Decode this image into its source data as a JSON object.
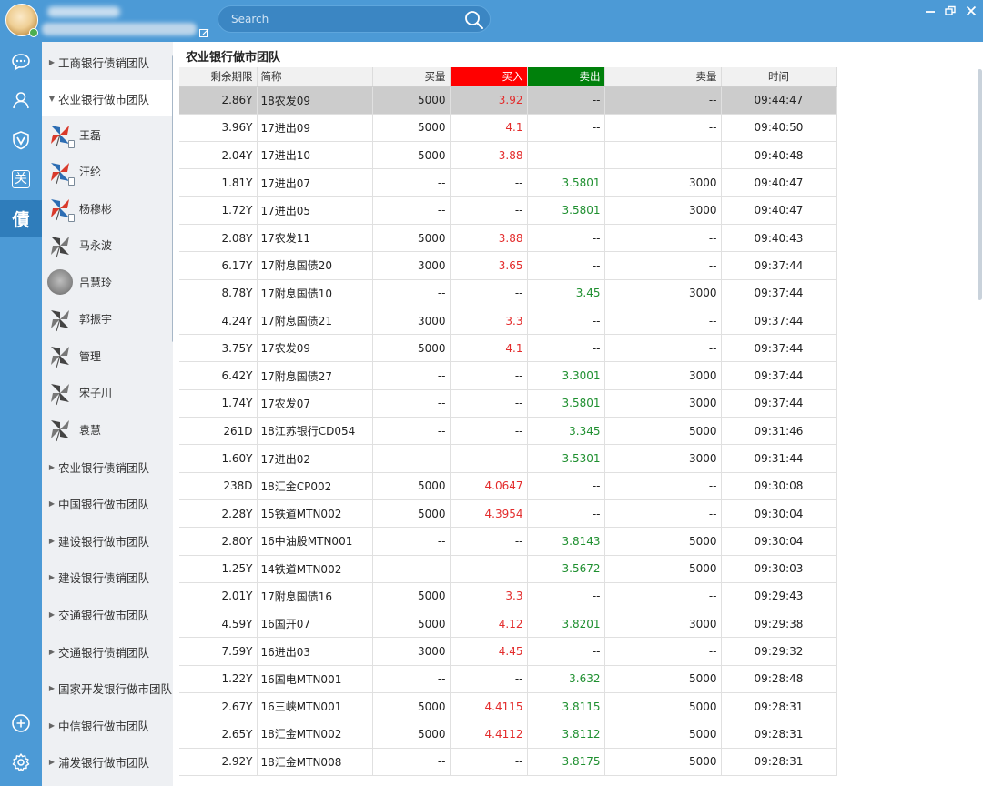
{
  "search": {
    "placeholder": "Search"
  },
  "colors": {
    "bar": "#4c9ad6",
    "buy_header": "#ff0000",
    "sell_header": "#00800b",
    "buy_text": "#e32b2b",
    "sell_text": "#1e8f2f"
  },
  "nav": [
    {
      "icon": "chat-icon"
    },
    {
      "icon": "contacts-icon"
    },
    {
      "icon": "shield-v-icon"
    },
    {
      "icon": "guan-icon",
      "glyph": "关"
    },
    {
      "icon": "zhai-icon",
      "glyph": "債",
      "active": true
    }
  ],
  "groups_top": [
    {
      "label": "工商银行债销团队",
      "expanded": false
    },
    {
      "label": "农业银行做市团队",
      "expanded": true
    }
  ],
  "members": [
    {
      "name": "王磊",
      "avatar": "pinwheel-color",
      "badge": true
    },
    {
      "name": "汪纶",
      "avatar": "pinwheel-color",
      "badge": true
    },
    {
      "name": "杨穆彬",
      "avatar": "pinwheel-color",
      "badge": true
    },
    {
      "name": "马永波",
      "avatar": "pinwheel-gray",
      "badge": false
    },
    {
      "name": "吕慧玲",
      "avatar": "photo",
      "badge": false
    },
    {
      "name": "郭振宇",
      "avatar": "pinwheel-gray",
      "badge": false
    },
    {
      "name": "管理",
      "avatar": "pinwheel-gray",
      "badge": false
    },
    {
      "name": "宋子川",
      "avatar": "pinwheel-gray",
      "badge": false
    },
    {
      "name": "袁慧",
      "avatar": "pinwheel-gray",
      "badge": false
    }
  ],
  "groups_bottom": [
    "农业银行债销团队",
    "中国银行做市团队",
    "建设银行做市团队",
    "建设银行债销团队",
    "交通银行做市团队",
    "交通银行债销团队",
    "国家开发银行做市团队",
    "中信银行做市团队",
    "浦发银行做市团队"
  ],
  "main": {
    "title": "农业银行做市团队",
    "columns": [
      "剩余期限",
      "简称",
      "买量",
      "买入",
      "卖出",
      "卖量",
      "时间"
    ],
    "rows": [
      [
        "2.86Y",
        "18农发09",
        "5000",
        "3.92",
        "--",
        "--",
        "09:44:47"
      ],
      [
        "3.96Y",
        "17进出09",
        "5000",
        "4.1",
        "--",
        "--",
        "09:40:50"
      ],
      [
        "2.04Y",
        "17进出10",
        "5000",
        "3.88",
        "--",
        "--",
        "09:40:48"
      ],
      [
        "1.81Y",
        "17进出07",
        "--",
        "--",
        "3.5801",
        "3000",
        "09:40:47"
      ],
      [
        "1.72Y",
        "17进出05",
        "--",
        "--",
        "3.5801",
        "3000",
        "09:40:47"
      ],
      [
        "2.08Y",
        "17农发11",
        "5000",
        "3.88",
        "--",
        "--",
        "09:40:43"
      ],
      [
        "6.17Y",
        "17附息国债20",
        "3000",
        "3.65",
        "--",
        "--",
        "09:37:44"
      ],
      [
        "8.78Y",
        "17附息国债10",
        "--",
        "--",
        "3.45",
        "3000",
        "09:37:44"
      ],
      [
        "4.24Y",
        "17附息国债21",
        "3000",
        "3.3",
        "--",
        "--",
        "09:37:44"
      ],
      [
        "3.75Y",
        "17农发09",
        "5000",
        "4.1",
        "--",
        "--",
        "09:37:44"
      ],
      [
        "6.42Y",
        "17附息国债27",
        "--",
        "--",
        "3.3001",
        "3000",
        "09:37:44"
      ],
      [
        "1.74Y",
        "17农发07",
        "--",
        "--",
        "3.5801",
        "3000",
        "09:37:44"
      ],
      [
        "261D",
        "18江苏银行CD054",
        "--",
        "--",
        "3.345",
        "5000",
        "09:31:46"
      ],
      [
        "1.60Y",
        "17进出02",
        "--",
        "--",
        "3.5301",
        "3000",
        "09:31:44"
      ],
      [
        "238D",
        "18汇金CP002",
        "5000",
        "4.0647",
        "--",
        "--",
        "09:30:08"
      ],
      [
        "2.28Y",
        "15铁道MTN002",
        "5000",
        "4.3954",
        "--",
        "--",
        "09:30:04"
      ],
      [
        "2.80Y",
        "16中油股MTN001",
        "--",
        "--",
        "3.8143",
        "5000",
        "09:30:04"
      ],
      [
        "1.25Y",
        "14铁道MTN002",
        "--",
        "--",
        "3.5672",
        "5000",
        "09:30:03"
      ],
      [
        "2.01Y",
        "17附息国债16",
        "5000",
        "3.3",
        "--",
        "--",
        "09:29:43"
      ],
      [
        "4.59Y",
        "16国开07",
        "5000",
        "4.12",
        "3.8201",
        "3000",
        "09:29:38"
      ],
      [
        "7.59Y",
        "16进出03",
        "3000",
        "4.45",
        "--",
        "--",
        "09:29:32"
      ],
      [
        "1.22Y",
        "16国电MTN001",
        "--",
        "--",
        "3.632",
        "5000",
        "09:28:48"
      ],
      [
        "2.67Y",
        "16三峡MTN001",
        "5000",
        "4.4115",
        "3.8115",
        "5000",
        "09:28:31"
      ],
      [
        "2.65Y",
        "18汇金MTN002",
        "5000",
        "4.4112",
        "3.8112",
        "5000",
        "09:28:31"
      ],
      [
        "2.92Y",
        "18汇金MTN008",
        "--",
        "--",
        "3.8175",
        "5000",
        "09:28:31"
      ]
    ],
    "selected_row": 0
  }
}
